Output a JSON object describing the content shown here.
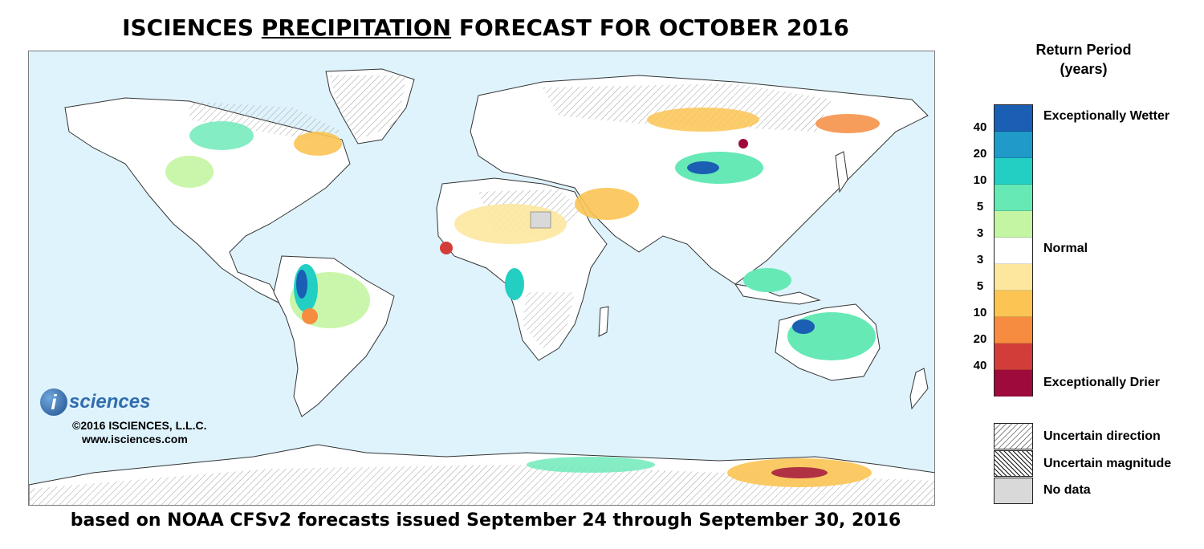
{
  "title": {
    "prefix": "ISCIENCES ",
    "emphasis": "PRECIPITATION",
    "suffix": " FORECAST FOR OCTOBER 2016"
  },
  "subtitle": "based on NOAA CFSv2 forecasts issued September 24 through September 30, 2016",
  "logo": {
    "mark": "i",
    "word": "sciences"
  },
  "copyright": [
    "©2016 ISCIENCES, L.L.C.",
    "www.isciences.com"
  ],
  "legend": {
    "title_line1": "Return Period",
    "title_line2": "(years)",
    "colors": [
      "#1a5fb4",
      "#1f9ac9",
      "#22cfc2",
      "#66e9b5",
      "#c4f5a2",
      "#ffffff",
      "#fde79e",
      "#fbc453",
      "#f68c3f",
      "#d23d3a",
      "#9e0a3c"
    ],
    "ticks": [
      "40",
      "20",
      "10",
      "5",
      "3",
      "3",
      "5",
      "10",
      "20",
      "40"
    ],
    "exceptionally_wetter": "Exceptionally Wetter",
    "normal": "Normal",
    "exceptionally_drier": "Exceptionally Drier",
    "patterns": {
      "uncertain_direction": "Uncertain direction",
      "uncertain_magnitude": "Uncertain magnitude",
      "no_data": "No data"
    }
  },
  "map_colors": {
    "ocean": "#dff3fc",
    "land": "#ffffff",
    "border": "#333333"
  }
}
